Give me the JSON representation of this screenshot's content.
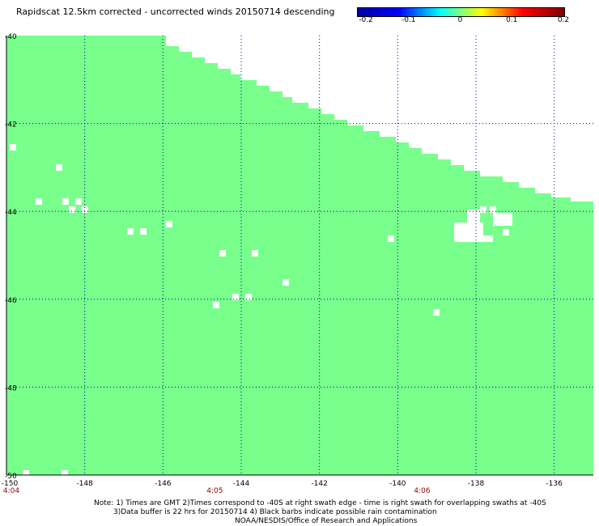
{
  "title": "Rapidscat 12.5km corrected - uncorrected winds 20150714 descending",
  "colorbar": {
    "ticks": [
      {
        "label": "-0.2",
        "value": -0.2
      },
      {
        "label": "-0.1",
        "value": -0.1
      },
      {
        "label": "0",
        "value": 0
      },
      {
        "label": "0.1",
        "value": 0.1
      },
      {
        "label": "0.2",
        "value": 0.2
      }
    ],
    "colors": [
      "#0000a0",
      "#0000ff",
      "#00ffff",
      "#ffff00",
      "#ff0000",
      "#800000"
    ]
  },
  "map": {
    "lon_range": [
      -150,
      -135
    ],
    "lat_range": [
      -40,
      -50
    ],
    "lat_labels": [
      {
        "label": "-40",
        "value": -40
      },
      {
        "label": "-42",
        "value": -42
      },
      {
        "label": "-44",
        "value": -44
      },
      {
        "label": "-46",
        "value": -46
      },
      {
        "label": "-48",
        "value": -48
      },
      {
        "label": "-50",
        "value": -50
      }
    ],
    "lon_labels": [
      {
        "label": "-150",
        "value": -150
      },
      {
        "label": "-148",
        "value": -148
      },
      {
        "label": "-146",
        "value": -146
      },
      {
        "label": "-144",
        "value": -144
      },
      {
        "label": "-142",
        "value": -142
      },
      {
        "label": "-140",
        "value": -140
      },
      {
        "label": "-138",
        "value": -138
      },
      {
        "label": "-136",
        "value": -136
      }
    ],
    "time_labels": [
      {
        "label": "4:04",
        "lon": -150
      },
      {
        "label": "4:05",
        "lon": -144.8
      },
      {
        "label": "4:06",
        "lon": -139.5
      }
    ],
    "swath_color": "#78ff8c",
    "grid_color": "#0000a0"
  },
  "notes": {
    "line1": "Note: 1) Times are GMT 2)Times correspond to -40S at right swath edge - time is right swath for overlapping swaths at -40S",
    "line2": "3)Data buffer is 22 hrs for 20150714 4) Black barbs indicate possible rain contamination",
    "line3": "NOAA/NESDIS/Office of Research and Applications"
  }
}
